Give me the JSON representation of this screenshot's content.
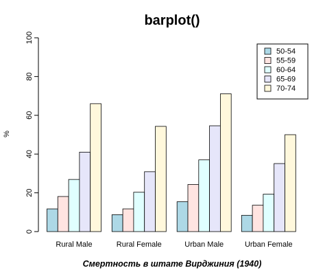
{
  "chart_data": {
    "type": "bar",
    "title": "barplot()",
    "xlabel": "Смертность в штате Вирджиния (1940)",
    "ylabel": "%",
    "ylim": [
      0,
      100
    ],
    "yticks": [
      "0",
      "20",
      "40",
      "60",
      "80",
      "100"
    ],
    "categories": [
      "Rural Male",
      "Rural Female",
      "Urban Male",
      "Urban Female"
    ],
    "series": [
      {
        "name": "50-54",
        "color": "#add8e6",
        "values": [
          11.7,
          8.7,
          15.4,
          8.4
        ]
      },
      {
        "name": "55-59",
        "color": "#ffe4e1",
        "values": [
          18.1,
          11.7,
          24.3,
          13.6
        ]
      },
      {
        "name": "60-64",
        "color": "#e0ffff",
        "values": [
          26.9,
          20.3,
          37.0,
          19.3
        ]
      },
      {
        "name": "65-69",
        "color": "#e6e6fa",
        "values": [
          41.0,
          30.9,
          54.6,
          35.1
        ]
      },
      {
        "name": "70-74",
        "color": "#fff8dc",
        "values": [
          66.0,
          54.3,
          71.1,
          50.0
        ]
      }
    ],
    "legend": {
      "position": "top-right"
    },
    "grid": false
  }
}
